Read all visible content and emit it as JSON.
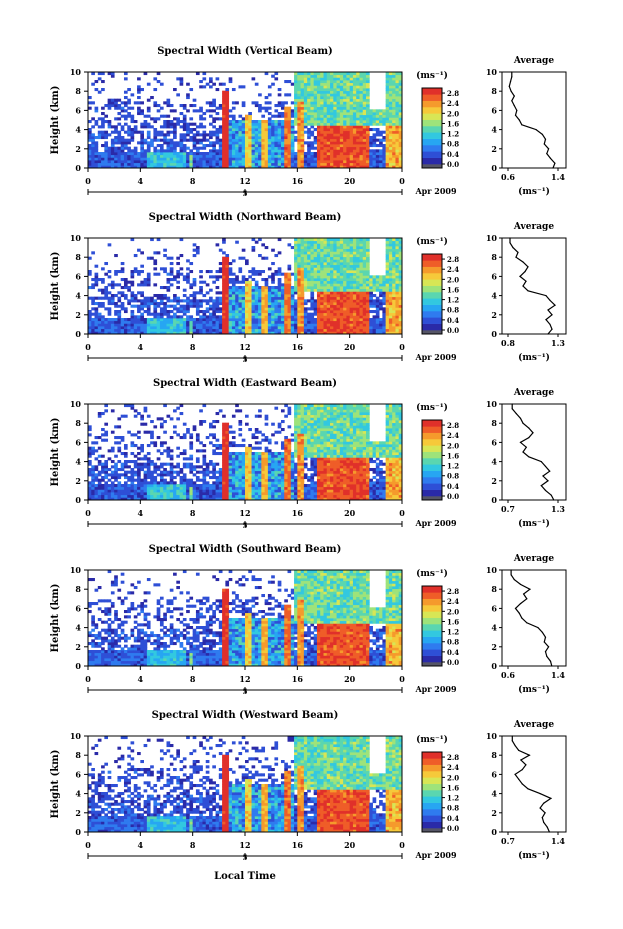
{
  "figure": {
    "xlabel": "Local Time",
    "date_label": "Apr 2009",
    "day_label": "5",
    "colorbar_unit": "(ms⁻¹)",
    "colormap": [
      "#2a2aa8",
      "#2e4fd6",
      "#2f7bef",
      "#27a6f2",
      "#32c8e0",
      "#5ad6b0",
      "#9ee37a",
      "#d8e655",
      "#f6c93a",
      "#f59a2c",
      "#ef5d28",
      "#e0302a"
    ],
    "low_color": "#555566"
  },
  "chart_data": [
    {
      "type": "heatmap",
      "title": "Spectral Width (Vertical Beam)",
      "xlabel": "",
      "ylabel": "Height (km)",
      "xlim": [
        0,
        24
      ],
      "ylim": [
        0,
        10
      ],
      "xticks": [
        "0",
        "4",
        "8",
        "12",
        "16",
        "20",
        "0"
      ],
      "yticks": [
        "0",
        "2",
        "4",
        "6",
        "8",
        "10"
      ],
      "colorbar": {
        "ticks": [
          "0.0",
          "0.4",
          "0.8",
          "1.2",
          "1.6",
          "2.0",
          "2.4",
          "2.8"
        ],
        "vmin": 0,
        "vmax": 3.0
      },
      "profile": {
        "title": "Average",
        "xlabel": "(ms⁻¹)",
        "xlim": [
          0.6,
          1.4
        ],
        "xticks": [
          "0.6",
          "1.4"
        ],
        "yticks": [
          "0",
          "2",
          "4",
          "6",
          "8",
          "10"
        ],
        "heights": [
          0,
          0.5,
          1,
          1.5,
          2,
          2.5,
          3,
          3.5,
          4,
          4.5,
          5,
          5.5,
          6,
          6.5,
          7,
          7.5,
          8,
          8.5,
          9,
          9.5,
          10
        ],
        "values": [
          1.32,
          1.35,
          1.28,
          1.22,
          1.25,
          1.18,
          1.2,
          1.15,
          1.05,
          0.82,
          0.78,
          0.72,
          0.74,
          0.7,
          0.66,
          0.7,
          0.65,
          0.62,
          0.64,
          0.66,
          0.66
        ]
      }
    },
    {
      "type": "heatmap",
      "title": "Spectral Width (Northward Beam)",
      "xlabel": "",
      "ylabel": "Height (km)",
      "xlim": [
        0,
        24
      ],
      "ylim": [
        0,
        10
      ],
      "xticks": [
        "0",
        "4",
        "8",
        "12",
        "16",
        "20",
        "0"
      ],
      "yticks": [
        "0",
        "2",
        "4",
        "6",
        "8",
        "10"
      ],
      "colorbar": {
        "ticks": [
          "0.0",
          "0.4",
          "0.8",
          "1.2",
          "1.6",
          "2.0",
          "2.4",
          "2.8"
        ],
        "vmin": 0,
        "vmax": 3.0
      },
      "profile": {
        "title": "Average",
        "xlabel": "(ms⁻¹)",
        "xlim": [
          0.8,
          1.3
        ],
        "xticks": [
          "0.8",
          "1.3"
        ],
        "yticks": [
          "0",
          "2",
          "4",
          "6",
          "8",
          "10"
        ],
        "heights": [
          0,
          0.5,
          1,
          1.5,
          2,
          2.5,
          3,
          3.5,
          4,
          4.5,
          5,
          5.5,
          6,
          6.5,
          7,
          7.5,
          8,
          8.5,
          9,
          9.5,
          10
        ],
        "values": [
          1.2,
          1.24,
          1.22,
          1.18,
          1.24,
          1.2,
          1.27,
          1.22,
          1.18,
          1.0,
          0.95,
          0.98,
          0.92,
          0.97,
          1.0,
          0.95,
          0.88,
          0.9,
          0.85,
          0.82,
          0.82
        ]
      }
    },
    {
      "type": "heatmap",
      "title": "Spectral Width (Eastward Beam)",
      "xlabel": "",
      "ylabel": "Height (km)",
      "xlim": [
        0,
        24
      ],
      "ylim": [
        0,
        10
      ],
      "xticks": [
        "0",
        "4",
        "8",
        "12",
        "16",
        "20",
        "0"
      ],
      "yticks": [
        "0",
        "2",
        "4",
        "6",
        "8",
        "10"
      ],
      "colorbar": {
        "ticks": [
          "0.0",
          "0.4",
          "0.8",
          "1.2",
          "1.6",
          "2.0",
          "2.4",
          "2.8"
        ],
        "vmin": 0,
        "vmax": 3.0
      },
      "profile": {
        "title": "Average",
        "xlabel": "(ms⁻¹)",
        "xlim": [
          0.7,
          1.3
        ],
        "xticks": [
          "0.7",
          "1.3"
        ],
        "yticks": [
          "0",
          "2",
          "4",
          "6",
          "8",
          "10"
        ],
        "heights": [
          0,
          0.5,
          1,
          1.5,
          2,
          2.5,
          3,
          3.5,
          4,
          4.5,
          5,
          5.5,
          6,
          6.5,
          7,
          7.5,
          8,
          8.5,
          9,
          9.5,
          10
        ],
        "values": [
          1.25,
          1.22,
          1.15,
          1.1,
          1.18,
          1.12,
          1.2,
          1.15,
          1.1,
          0.95,
          0.88,
          0.92,
          0.85,
          0.95,
          1.0,
          0.95,
          0.88,
          0.85,
          0.8,
          0.75,
          0.75
        ]
      }
    },
    {
      "type": "heatmap",
      "title": "Spectral Width (Southward Beam)",
      "xlabel": "",
      "ylabel": "Height (km)",
      "xlim": [
        0,
        24
      ],
      "ylim": [
        0,
        10
      ],
      "xticks": [
        "0",
        "4",
        "8",
        "12",
        "16",
        "20",
        "0"
      ],
      "yticks": [
        "0",
        "2",
        "4",
        "6",
        "8",
        "10"
      ],
      "colorbar": {
        "ticks": [
          "0.0",
          "0.4",
          "0.8",
          "1.2",
          "1.6",
          "2.0",
          "2.4",
          "2.8"
        ],
        "vmin": 0,
        "vmax": 3.0
      },
      "profile": {
        "title": "Average",
        "xlabel": "(ms⁻¹)",
        "xlim": [
          0.6,
          1.4
        ],
        "xticks": [
          "0.6",
          "1.4"
        ],
        "yticks": [
          "0",
          "2",
          "4",
          "6",
          "8",
          "10"
        ],
        "heights": [
          0,
          0.5,
          1,
          1.5,
          2,
          2.5,
          3,
          3.5,
          4,
          4.5,
          5,
          5.5,
          6,
          6.5,
          7,
          7.5,
          8,
          8.5,
          9,
          9.5,
          10
        ],
        "values": [
          1.3,
          1.28,
          1.22,
          1.2,
          1.25,
          1.18,
          1.2,
          1.15,
          1.08,
          0.9,
          0.82,
          0.78,
          0.72,
          0.8,
          0.9,
          0.85,
          0.95,
          0.8,
          0.7,
          0.65,
          0.65
        ]
      }
    },
    {
      "type": "heatmap",
      "title": "Spectral Width (Westward Beam)",
      "xlabel": "Local Time",
      "ylabel": "Height (km)",
      "xlim": [
        0,
        24
      ],
      "ylim": [
        0,
        10
      ],
      "xticks": [
        "0",
        "4",
        "8",
        "12",
        "16",
        "20",
        "0"
      ],
      "yticks": [
        "0",
        "2",
        "4",
        "6",
        "8",
        "10"
      ],
      "colorbar": {
        "ticks": [
          "0.0",
          "0.4",
          "0.8",
          "1.2",
          "1.6",
          "2.0",
          "2.4",
          "2.8"
        ],
        "vmin": 0,
        "vmax": 3.0
      },
      "profile": {
        "title": "Average",
        "xlabel": "(ms⁻¹)",
        "xlim": [
          0.7,
          1.4
        ],
        "xticks": [
          "0.7",
          "1.4"
        ],
        "yticks": [
          "0",
          "2",
          "4",
          "6",
          "8",
          "10"
        ],
        "heights": [
          0,
          0.5,
          1,
          1.5,
          2,
          2.5,
          3,
          3.5,
          4,
          4.5,
          5,
          5.5,
          6,
          6.5,
          7,
          7.5,
          8,
          8.5,
          9,
          9.5,
          10
        ],
        "values": [
          1.28,
          1.25,
          1.2,
          1.18,
          1.22,
          1.15,
          1.2,
          1.3,
          1.15,
          0.98,
          0.9,
          0.85,
          0.8,
          0.9,
          0.95,
          0.88,
          1.0,
          0.85,
          0.8,
          0.76,
          0.76
        ]
      }
    }
  ]
}
